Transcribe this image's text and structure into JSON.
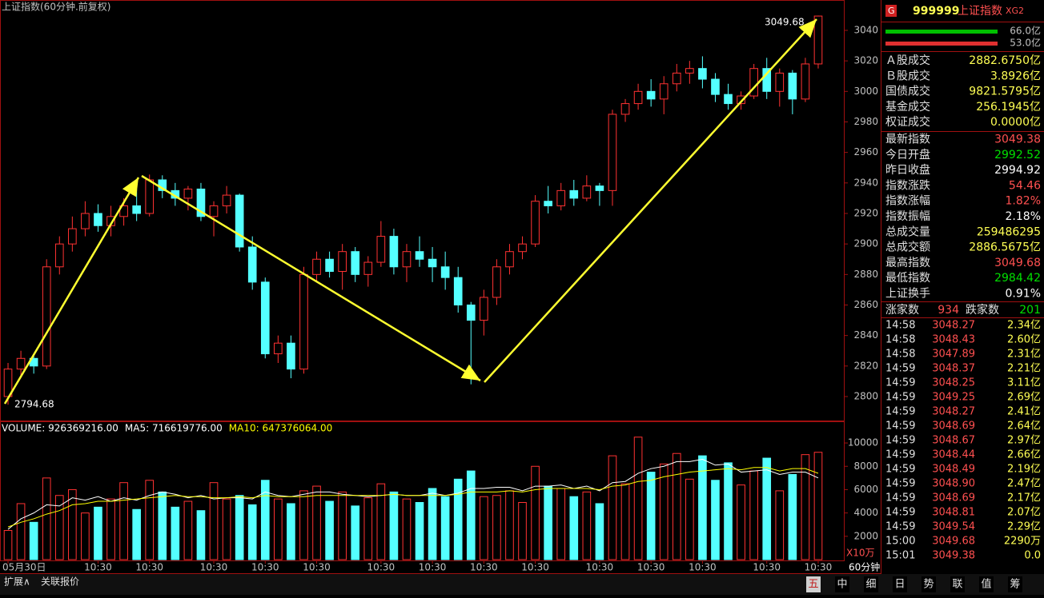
{
  "chart_data": [
    {
      "type": "candlestick",
      "title": "上证指数(60分钟.前复权)",
      "ylim": [
        2784.8,
        3059.9
      ],
      "yticks": [
        2800,
        2820,
        2840,
        2860,
        2880,
        2900,
        2920,
        2940,
        2960,
        2980,
        3000,
        3020,
        3040
      ],
      "up_color": "#ff3232",
      "down_color": "#54ffff",
      "annotations": [
        "3049.68",
        "2794.68"
      ],
      "ohlc": [
        [
          2800,
          2822,
          2794.68,
          2818
        ],
        [
          2818,
          2830,
          2812,
          2825
        ],
        [
          2825,
          2828,
          2815,
          2820
        ],
        [
          2820,
          2890,
          2818,
          2885
        ],
        [
          2885,
          2905,
          2880,
          2900
        ],
        [
          2900,
          2918,
          2895,
          2910
        ],
        [
          2910,
          2928,
          2905,
          2920
        ],
        [
          2920,
          2926,
          2908,
          2912
        ],
        [
          2912,
          2925,
          2905,
          2918
        ],
        [
          2918,
          2930,
          2912,
          2925
        ],
        [
          2925,
          2936,
          2915,
          2920
        ],
        [
          2920,
          2945.5,
          2918,
          2942
        ],
        [
          2942,
          2945,
          2930,
          2935
        ],
        [
          2935,
          2940,
          2925,
          2930
        ],
        [
          2930,
          2938,
          2922,
          2936
        ],
        [
          2936,
          2940,
          2915,
          2918
        ],
        [
          2918,
          2928,
          2905,
          2925
        ],
        [
          2925,
          2938,
          2920,
          2932
        ],
        [
          2932,
          2933,
          2895,
          2898
        ],
        [
          2898,
          2905,
          2870,
          2875
        ],
        [
          2875,
          2878,
          2825,
          2828
        ],
        [
          2828,
          2840,
          2822,
          2835
        ],
        [
          2835,
          2840,
          2812,
          2818
        ],
        [
          2818,
          2885,
          2815,
          2880
        ],
        [
          2880,
          2895,
          2875,
          2890
        ],
        [
          2890,
          2895,
          2878,
          2882
        ],
        [
          2882,
          2900,
          2870,
          2895
        ],
        [
          2895,
          2898,
          2875,
          2880
        ],
        [
          2880,
          2892,
          2872,
          2888
        ],
        [
          2888,
          2915,
          2885,
          2905
        ],
        [
          2905,
          2910,
          2880,
          2885
        ],
        [
          2885,
          2900,
          2875,
          2895
        ],
        [
          2895,
          2905,
          2885,
          2890
        ],
        [
          2890,
          2898,
          2875,
          2885
        ],
        [
          2885,
          2895,
          2870,
          2878
        ],
        [
          2878,
          2885,
          2855,
          2860
        ],
        [
          2860,
          2862,
          2808,
          2850
        ],
        [
          2850,
          2870,
          2840,
          2865
        ],
        [
          2865,
          2890,
          2860,
          2885
        ],
        [
          2885,
          2900,
          2880,
          2895
        ],
        [
          2895,
          2905,
          2890,
          2900
        ],
        [
          2900,
          2932,
          2898,
          2928
        ],
        [
          2928,
          2938,
          2920,
          2925
        ],
        [
          2925,
          2940,
          2922,
          2935
        ],
        [
          2935,
          2942,
          2925,
          2930
        ],
        [
          2930,
          2945,
          2928,
          2938
        ],
        [
          2938,
          2940,
          2925,
          2935
        ],
        [
          2935,
          2988,
          2925,
          2985
        ],
        [
          2985,
          2995,
          2980,
          2992
        ],
        [
          2992,
          3005,
          2988,
          3000
        ],
        [
          3000,
          3008,
          2990,
          2995
        ],
        [
          2995,
          3010,
          2985,
          3005
        ],
        [
          3005,
          3018,
          3000,
          3012
        ],
        [
          3012,
          3020,
          3005,
          3015
        ],
        [
          3015,
          3023,
          3002,
          3008
        ],
        [
          3008,
          3012,
          2993,
          2998
        ],
        [
          2998,
          3005,
          2988,
          2992
        ],
        [
          2992,
          3000,
          2988,
          2997
        ],
        [
          2997,
          3018,
          2995,
          3015
        ],
        [
          3015,
          3022,
          2995,
          3000
        ],
        [
          3000,
          3015,
          2990,
          3012
        ],
        [
          3012,
          3014,
          2985,
          2995
        ],
        [
          2995,
          3022,
          2993,
          3018
        ],
        [
          3018,
          3049.68,
          3015,
          3049.38
        ]
      ]
    },
    {
      "type": "bar",
      "y_unit_label": "X10万",
      "ylim": [
        0,
        11650
      ],
      "yticks": [
        2000,
        4000,
        6000,
        8000,
        10000
      ],
      "categories": [
        "05月30日",
        null,
        null,
        null,
        null,
        null,
        null,
        "10:30",
        null,
        null,
        null,
        "10:30",
        null,
        null,
        null,
        null,
        "10:30",
        null,
        null,
        null,
        "10:30",
        null,
        null,
        null,
        "10:30",
        null,
        null,
        null,
        null,
        "10:30",
        null,
        null,
        null,
        "10:30",
        null,
        null,
        null,
        "10:30",
        null,
        null,
        null,
        "10:30",
        null,
        null,
        null,
        null,
        "10:30",
        null,
        null,
        null,
        "10:30",
        null,
        null,
        null,
        "10:30",
        null,
        null,
        null,
        null,
        "10:30",
        null,
        null,
        null,
        "10:30"
      ],
      "series": [
        {
          "name": "VOLUME: 926369216.00",
          "color": "#ffffff",
          "values": [
            2500,
            4800,
            3200,
            7000,
            5500,
            6000,
            4000,
            4500,
            5200,
            6600,
            4300,
            6800,
            5800,
            4500,
            5000,
            4200,
            6600,
            5200,
            5500,
            4700,
            6800,
            5200,
            4800,
            5900,
            6300,
            5000,
            5800,
            4600,
            5300,
            6500,
            5800,
            5200,
            4900,
            6100,
            5400,
            6900,
            7600,
            5400,
            5500,
            5900,
            4900,
            8000,
            6300,
            6100,
            5400,
            5800,
            4800,
            8900,
            6500,
            10500,
            7500,
            8200,
            9100,
            6900,
            8900,
            6800,
            8300,
            6400,
            7600,
            8700,
            5900,
            7300,
            9000,
            9200
          ]
        },
        {
          "name": "MA5: 716619776.00",
          "color": "#ffffff",
          "values": [
            2600,
            3500,
            4000,
            4700,
            4600,
            5300,
            5100,
            5400,
            5000,
            5300,
            5100,
            5500,
            5800,
            5600,
            5300,
            5500,
            5200,
            5300,
            5300,
            5200,
            5800,
            5500,
            5400,
            5600,
            5800,
            5800,
            5600,
            5500,
            5400,
            5500,
            5600,
            5500,
            5500,
            5700,
            5500,
            5700,
            6100,
            6100,
            6200,
            6200,
            5900,
            6300,
            6300,
            6400,
            6100,
            6300,
            5900,
            6600,
            6700,
            7400,
            7800,
            8000,
            8400,
            8400,
            8600,
            8100,
            8200,
            7500,
            7600,
            7700,
            7300,
            7500,
            7500,
            7000
          ]
        },
        {
          "name": "MA10: 647376064.00",
          "color": "#ffff00",
          "values": [
            2800,
            3200,
            3500,
            3900,
            4200,
            4700,
            4800,
            5000,
            5000,
            5100,
            5200,
            5300,
            5400,
            5500,
            5400,
            5400,
            5300,
            5300,
            5400,
            5300,
            5500,
            5400,
            5400,
            5400,
            5500,
            5500,
            5500,
            5500,
            5500,
            5500,
            5600,
            5500,
            5500,
            5500,
            5500,
            5600,
            5800,
            5800,
            5800,
            5900,
            5800,
            6000,
            6100,
            6100,
            6100,
            6100,
            6000,
            6300,
            6400,
            6700,
            6800,
            7100,
            7300,
            7500,
            7600,
            7700,
            7800,
            7700,
            7900,
            7900,
            7600,
            7800,
            7800,
            7400
          ]
        }
      ]
    }
  ],
  "sidebar": {
    "badge": "G",
    "code": "999999",
    "name": "上证指数",
    "tag": "XG2",
    "bar_labels": [
      "66.0亿",
      "53.0亿"
    ],
    "rows": [
      {
        "label": "Ａ股成交",
        "value": "2882.6750亿",
        "color": "#ffff54"
      },
      {
        "label": "Ｂ股成交",
        "value": "3.8926亿",
        "color": "#ffff54"
      },
      {
        "label": "国债成交",
        "value": "9821.5795亿",
        "color": "#ffff54"
      },
      {
        "label": "基金成交",
        "value": "256.1945亿",
        "color": "#ffff54"
      },
      {
        "label": "权证成交",
        "value": "0.0000亿",
        "color": "#ffff54"
      },
      {
        "label": "最新指数",
        "value": "3049.38",
        "color": "#ff5050"
      },
      {
        "label": "今日开盘",
        "value": "2992.52",
        "color": "#00e000"
      },
      {
        "label": "昨日收盘",
        "value": "2994.92",
        "color": "#ffffff"
      },
      {
        "label": "指数涨跌",
        "value": "54.46",
        "color": "#ff5050"
      },
      {
        "label": "指数涨幅",
        "value": "1.82%",
        "color": "#ff5050"
      },
      {
        "label": "指数振幅",
        "value": "2.18%",
        "color": "#ffffff"
      },
      {
        "label": "总成交量",
        "value": "259486295",
        "color": "#ffff54"
      },
      {
        "label": "总成交额",
        "value": "2886.5675亿",
        "color": "#ffff54"
      },
      {
        "label": "最高指数",
        "value": "3049.68",
        "color": "#ff5050"
      },
      {
        "label": "最低指数",
        "value": "2984.42",
        "color": "#00e000"
      },
      {
        "label": "上证换手",
        "value": "0.91%",
        "color": "#ffffff"
      }
    ],
    "breadth": {
      "up_label": "涨家数",
      "up": 934,
      "down_label": "跌家数",
      "down": 201
    },
    "ticks": [
      [
        "14:58",
        "3048.27",
        "2.34亿"
      ],
      [
        "14:58",
        "3048.43",
        "2.60亿"
      ],
      [
        "14:58",
        "3047.89",
        "2.31亿"
      ],
      [
        "14:59",
        "3048.37",
        "2.21亿"
      ],
      [
        "14:59",
        "3048.25",
        "3.11亿"
      ],
      [
        "14:59",
        "3049.25",
        "2.69亿"
      ],
      [
        "14:59",
        "3048.27",
        "2.41亿"
      ],
      [
        "14:59",
        "3048.69",
        "2.64亿"
      ],
      [
        "14:59",
        "3048.67",
        "2.97亿"
      ],
      [
        "14:59",
        "3048.44",
        "2.66亿"
      ],
      [
        "14:59",
        "3048.49",
        "2.19亿"
      ],
      [
        "14:59",
        "3048.90",
        "2.47亿"
      ],
      [
        "14:59",
        "3048.69",
        "2.17亿"
      ],
      [
        "14:59",
        "3048.81",
        "2.07亿"
      ],
      [
        "14:59",
        "3049.54",
        "2.29亿"
      ],
      [
        "15:00",
        "3049.68",
        "2290万"
      ],
      [
        "15:01",
        "3049.38",
        "0.0"
      ]
    ]
  },
  "footer": {
    "left": [
      "扩展∧",
      "关联报价"
    ],
    "period": "60分钟",
    "buttons": [
      "五",
      "中",
      "细",
      "日",
      "势",
      "联",
      "值",
      "筹"
    ]
  }
}
